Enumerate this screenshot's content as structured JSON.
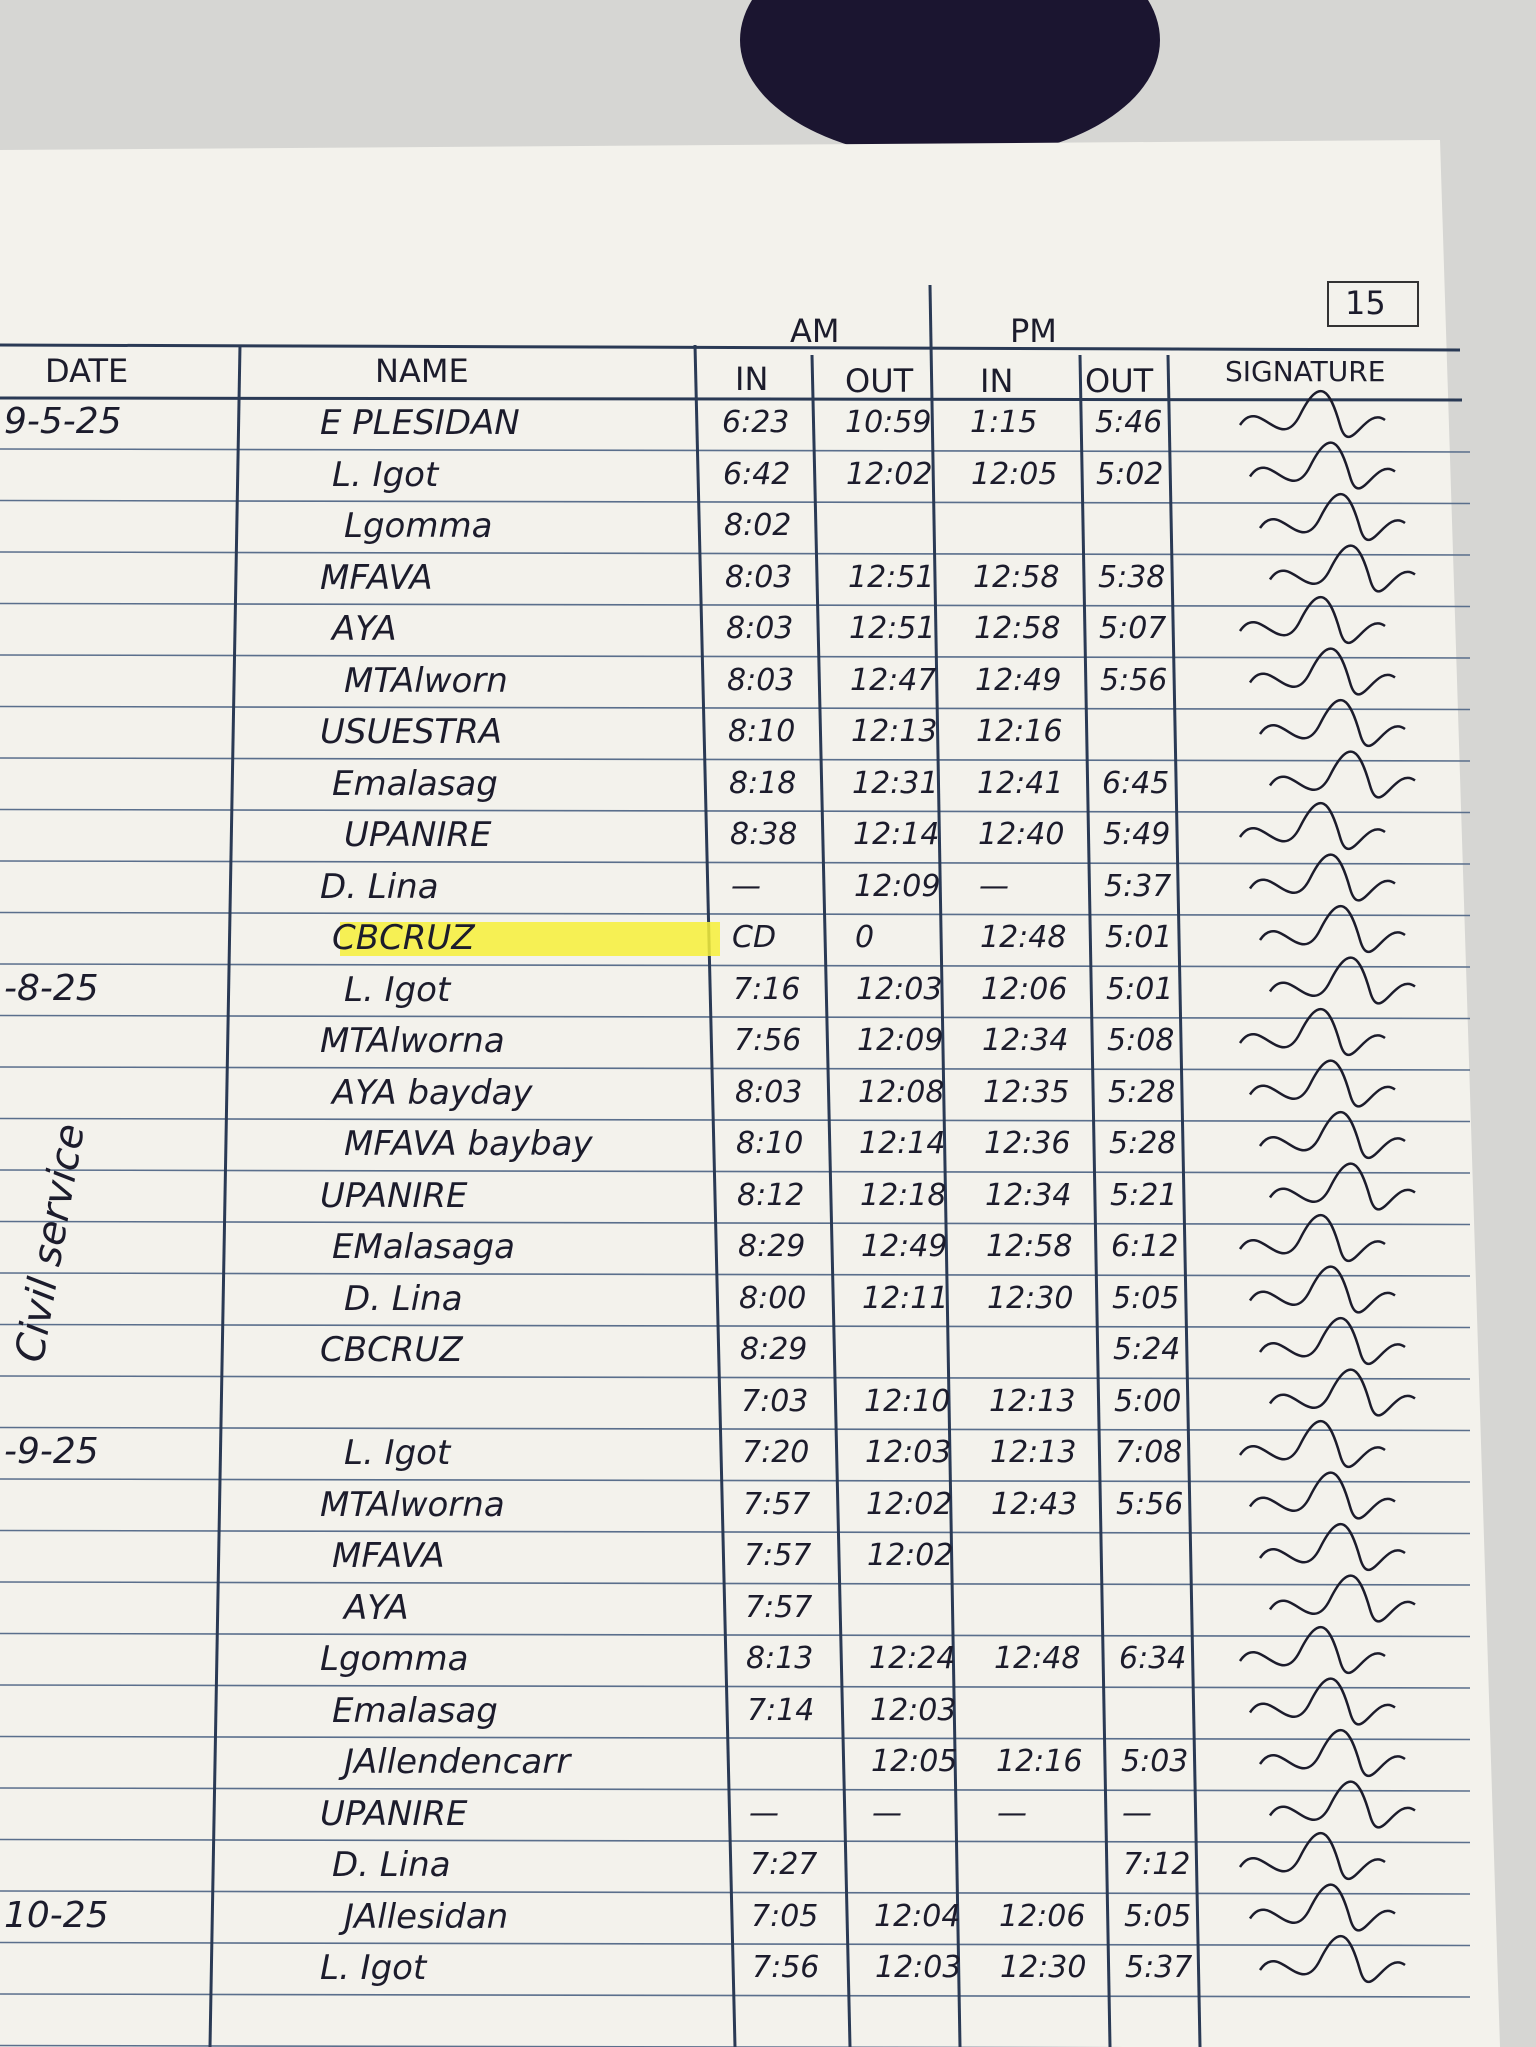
{
  "page_number": "15",
  "side_note": "Civil service",
  "headers": {
    "date": "DATE",
    "name": "NAME",
    "am": "AM",
    "pm": "PM",
    "in": "IN",
    "out": "OUT",
    "signature": "SIGNATURE"
  },
  "rows": [
    {
      "date": "9-5-25",
      "name": "E PLESIDAN",
      "am_in": "6:23",
      "am_out": "10:59",
      "pm_in": "1:15",
      "pm_out": "5:46"
    },
    {
      "name": "L. Igot",
      "am_in": "6:42",
      "am_out": "12:02",
      "pm_in": "12:05",
      "pm_out": "5:02"
    },
    {
      "name": "Lgomma",
      "am_in": "8:02"
    },
    {
      "name": "MFAVA",
      "am_in": "8:03",
      "am_out": "12:51",
      "pm_in": "12:58",
      "pm_out": "5:38"
    },
    {
      "name": "AYA",
      "am_in": "8:03",
      "am_out": "12:51",
      "pm_in": "12:58",
      "pm_out": "5:07"
    },
    {
      "name": "MTAlworn",
      "am_in": "8:03",
      "am_out": "12:47",
      "pm_in": "12:49",
      "pm_out": "5:56"
    },
    {
      "name": "USUESTRA",
      "am_in": "8:10",
      "am_out": "12:13",
      "pm_in": "12:16"
    },
    {
      "name": "Emalasag",
      "am_in": "8:18",
      "am_out": "12:31",
      "pm_in": "12:41",
      "pm_out": "6:45"
    },
    {
      "name": "UPANIRE",
      "am_in": "8:38",
      "am_out": "12:14",
      "pm_in": "12:40",
      "pm_out": "5:49"
    },
    {
      "name": "D. Lina",
      "am_in": "—",
      "am_out": "12:09",
      "pm_in": "—",
      "pm_out": "5:37"
    },
    {
      "name": "CBCRUZ",
      "am_in": "CD",
      "am_out": "0",
      "pm_in": "12:48",
      "pm_out": "5:01",
      "highlight": true
    },
    {
      "date": "-8-25",
      "name": "L. Igot",
      "am_in": "7:16",
      "am_out": "12:03",
      "pm_in": "12:06",
      "pm_out": "5:01"
    },
    {
      "name": "MTAlworna",
      "am_in": "7:56",
      "am_out": "12:09",
      "pm_in": "12:34",
      "pm_out": "5:08"
    },
    {
      "name": "AYA bayday",
      "am_in": "8:03",
      "am_out": "12:08",
      "pm_in": "12:35",
      "pm_out": "5:28"
    },
    {
      "name": "MFAVA baybay",
      "am_in": "8:10",
      "am_out": "12:14",
      "pm_in": "12:36",
      "pm_out": "5:28"
    },
    {
      "name": "UPANIRE",
      "am_in": "8:12",
      "am_out": "12:18",
      "pm_in": "12:34",
      "pm_out": "5:21"
    },
    {
      "name": "EMalasaga",
      "am_in": "8:29",
      "am_out": "12:49",
      "pm_in": "12:58",
      "pm_out": "6:12"
    },
    {
      "name": "D. Lina",
      "am_in": "8:00",
      "am_out": "12:11",
      "pm_in": "12:30",
      "pm_out": "5:05"
    },
    {
      "name": "CBCRUZ",
      "am_in": "8:29",
      "pm_out": "5:24"
    },
    {
      "am_in": "7:03",
      "am_out": "12:10",
      "pm_in": "12:13",
      "pm_out": "5:00"
    },
    {
      "date": "-9-25",
      "name": "L. Igot",
      "am_in": "7:20",
      "am_out": "12:03",
      "pm_in": "12:13",
      "pm_out": "7:08"
    },
    {
      "name": "MTAlworna",
      "am_in": "7:57",
      "am_out": "12:02",
      "pm_in": "12:43",
      "pm_out": "5:56"
    },
    {
      "name": "MFAVA",
      "am_in": "7:57",
      "am_out": "12:02"
    },
    {
      "name": "AYA",
      "am_in": "7:57"
    },
    {
      "name": "Lgomma",
      "am_in": "8:13",
      "am_out": "12:24",
      "pm_in": "12:48",
      "pm_out": "6:34"
    },
    {
      "name": "Emalasag",
      "am_in": "7:14",
      "am_out": "12:03"
    },
    {
      "name": "JAllendencarr",
      "am_out": "12:05",
      "pm_in": "12:16",
      "pm_out": "5:03"
    },
    {
      "name": "UPANIRE",
      "am_in": "—",
      "am_out": "—",
      "pm_in": "—",
      "pm_out": "—"
    },
    {
      "name": "D. Lina",
      "am_in": "7:27",
      "pm_out": "7:12"
    },
    {
      "date": "10-25",
      "name": "JAllesidan",
      "am_in": "7:05",
      "am_out": "12:04",
      "pm_in": "12:06",
      "pm_out": "5:05"
    },
    {
      "name": "L. Igot",
      "am_in": "7:56",
      "am_out": "12:03",
      "pm_in": "12:30",
      "pm_out": "5:37"
    }
  ]
}
